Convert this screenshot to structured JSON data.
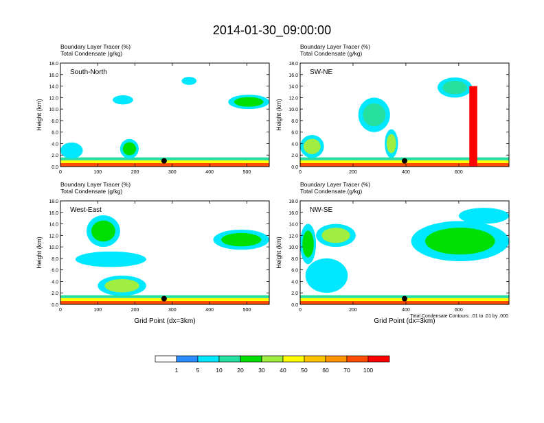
{
  "figure": {
    "title": "2014-01-30_09:00:00",
    "footnote": "Total Condensate Contours: .01 to .01 by .000"
  },
  "chart_data": [
    {
      "type": "heatmap",
      "panel_label": "South-North",
      "subtitle_line1": "Boundary Layer Tracer   (%)",
      "subtitle_line2": "Total Condensate   (g/kg)",
      "xlabel": "",
      "ylabel": "Height (km)",
      "xlim": [
        0,
        560
      ],
      "ylim": [
        0,
        18
      ],
      "xticks": [
        "0",
        "100",
        "200",
        "300",
        "400",
        "500"
      ],
      "xtick_values": [
        0,
        100,
        200,
        300,
        400,
        500
      ],
      "yticks": [
        "0.0",
        "2.0",
        "4.0",
        "6.0",
        "8.0",
        "10.0",
        "12.0",
        "14.0",
        "16.0",
        "18.0"
      ],
      "marker_x": 278,
      "blobs": [
        {
          "x0": 0,
          "x1": 560,
          "y0": 0,
          "y1": 0.6,
          "level": 70
        },
        {
          "x0": 0,
          "x1": 560,
          "y0": 0.6,
          "y1": 1.1,
          "level": 40
        },
        {
          "x0": 0,
          "x1": 560,
          "y0": 1.1,
          "y1": 1.6,
          "level": 10
        },
        {
          "x0": 0,
          "x1": 60,
          "y0": 1.4,
          "y1": 4.2,
          "level": 5
        },
        {
          "x0": 160,
          "x1": 210,
          "y0": 1.4,
          "y1": 4.8,
          "level": 20
        },
        {
          "x0": 140,
          "x1": 195,
          "y0": 10.8,
          "y1": 12.4,
          "level": 5
        },
        {
          "x0": 325,
          "x1": 365,
          "y0": 14.2,
          "y1": 15.6,
          "level": 5
        },
        {
          "x0": 450,
          "x1": 560,
          "y0": 10.0,
          "y1": 12.5,
          "level": 20
        }
      ]
    },
    {
      "type": "heatmap",
      "panel_label": "SW-NE",
      "subtitle_line1": "Boundary Layer Tracer   (%)",
      "subtitle_line2": "Total Condensate   (g/kg)",
      "xlabel": "",
      "ylabel": "Height (km)",
      "xlim": [
        0,
        790
      ],
      "ylim": [
        0,
        18
      ],
      "xticks": [
        "0",
        "200",
        "400",
        "600"
      ],
      "xtick_values": [
        0,
        200,
        400,
        600
      ],
      "yticks": [
        "0.0",
        "2.0",
        "4.0",
        "6.0",
        "8.0",
        "10.0",
        "12.0",
        "14.0",
        "16.0",
        "18.0"
      ],
      "marker_x": 395,
      "blobs": [
        {
          "x0": 0,
          "x1": 790,
          "y0": 0,
          "y1": 0.6,
          "level": 70
        },
        {
          "x0": 0,
          "x1": 790,
          "y0": 0.6,
          "y1": 1.1,
          "level": 40
        },
        {
          "x0": 0,
          "x1": 790,
          "y0": 1.1,
          "y1": 1.6,
          "level": 10
        },
        {
          "x0": 0,
          "x1": 90,
          "y0": 1.5,
          "y1": 5.5,
          "level": 30
        },
        {
          "x0": 220,
          "x1": 340,
          "y0": 6.0,
          "y1": 12.0,
          "level": 10
        },
        {
          "x0": 320,
          "x1": 370,
          "y0": 1.5,
          "y1": 6.5,
          "level": 30
        },
        {
          "x0": 520,
          "x1": 650,
          "y0": 12.0,
          "y1": 15.5,
          "level": 10
        },
        {
          "x0": 640,
          "x1": 670,
          "y0": 0,
          "y1": 14.0,
          "level": 100
        }
      ]
    },
    {
      "type": "heatmap",
      "panel_label": "West-East",
      "subtitle_line1": "Boundary Layer Tracer   (%)",
      "subtitle_line2": "Total Condensate   (g/kg)",
      "xlabel": "Grid Point (dx=3km)",
      "ylabel": "Height (km)",
      "xlim": [
        0,
        560
      ],
      "ylim": [
        0,
        18
      ],
      "xticks": [
        "0",
        "100",
        "200",
        "300",
        "400",
        "500"
      ],
      "xtick_values": [
        0,
        100,
        200,
        300,
        400,
        500
      ],
      "yticks": [
        "0.0",
        "2.0",
        "4.0",
        "6.0",
        "8.0",
        "10.0",
        "12.0",
        "14.0",
        "16.0",
        "18.0"
      ],
      "marker_x": 278,
      "blobs": [
        {
          "x0": 0,
          "x1": 560,
          "y0": 0,
          "y1": 0.6,
          "level": 70
        },
        {
          "x0": 0,
          "x1": 560,
          "y0": 0.6,
          "y1": 1.1,
          "level": 40
        },
        {
          "x0": 0,
          "x1": 560,
          "y0": 1.1,
          "y1": 1.6,
          "level": 10
        },
        {
          "x0": 70,
          "x1": 160,
          "y0": 10.0,
          "y1": 15.5,
          "level": 20
        },
        {
          "x0": 40,
          "x1": 230,
          "y0": 6.5,
          "y1": 9.2,
          "level": 5
        },
        {
          "x0": 100,
          "x1": 230,
          "y0": 1.5,
          "y1": 5.0,
          "level": 30
        },
        {
          "x0": 410,
          "x1": 560,
          "y0": 9.5,
          "y1": 13.0,
          "level": 20
        }
      ]
    },
    {
      "type": "heatmap",
      "panel_label": "NW-SE",
      "subtitle_line1": "Boundary Layer Tracer   (%)",
      "subtitle_line2": "Total Condensate   (g/kg)",
      "xlabel": "Grid Point (dx=3km)",
      "ylabel": "Height (km)",
      "xlim": [
        0,
        790
      ],
      "ylim": [
        0,
        18
      ],
      "xticks": [
        "0",
        "200",
        "400",
        "600"
      ],
      "xtick_values": [
        0,
        200,
        400,
        600
      ],
      "yticks": [
        "0.0",
        "2.0",
        "4.0",
        "6.0",
        "8.0",
        "10.0",
        "12.0",
        "14.0",
        "16.0",
        "18.0"
      ],
      "marker_x": 395,
      "blobs": [
        {
          "x0": 0,
          "x1": 790,
          "y0": 0,
          "y1": 0.6,
          "level": 70
        },
        {
          "x0": 0,
          "x1": 790,
          "y0": 0.6,
          "y1": 1.1,
          "level": 40
        },
        {
          "x0": 0,
          "x1": 790,
          "y0": 1.1,
          "y1": 1.6,
          "level": 10
        },
        {
          "x0": 0,
          "x1": 60,
          "y0": 7.0,
          "y1": 14.0,
          "level": 20
        },
        {
          "x0": 60,
          "x1": 210,
          "y0": 10.0,
          "y1": 14.0,
          "level": 30
        },
        {
          "x0": 20,
          "x1": 180,
          "y0": 2.0,
          "y1": 8.0,
          "level": 5
        },
        {
          "x0": 420,
          "x1": 790,
          "y0": 7.5,
          "y1": 14.5,
          "level": 20
        },
        {
          "x0": 600,
          "x1": 790,
          "y0": 14.0,
          "y1": 16.8,
          "level": 5
        }
      ]
    }
  ],
  "legend": {
    "labels": [
      "1",
      "5",
      "10",
      "20",
      "30",
      "40",
      "50",
      "60",
      "70",
      "100"
    ],
    "levels": [
      0,
      1,
      5,
      10,
      20,
      30,
      40,
      50,
      60,
      70,
      100
    ],
    "colors": [
      "#ffffff",
      "#2b8cff",
      "#00e8ff",
      "#26e0a0",
      "#00e000",
      "#a0ee40",
      "#ffff00",
      "#ffc400",
      "#ff9400",
      "#ff4d00",
      "#ff0000"
    ]
  }
}
